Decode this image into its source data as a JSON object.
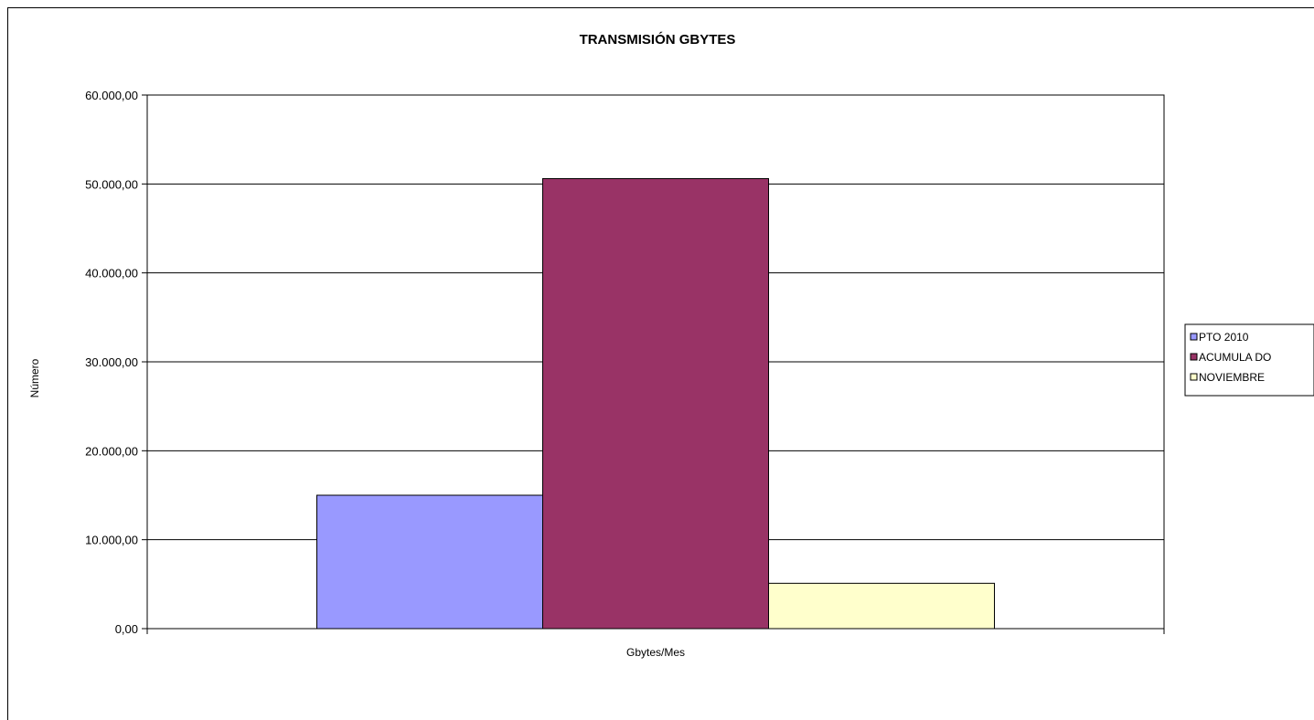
{
  "chart_data": {
    "type": "bar",
    "title": "TRANSMISIÓN GBYTES",
    "xlabel": "Gbytes/Mes",
    "ylabel": "Número",
    "categories": [
      "Gbytes/Mes"
    ],
    "series": [
      {
        "name": "PTO  2010",
        "values": [
          15000
        ],
        "color": "#9999FF"
      },
      {
        "name": "ACUMULA DO",
        "values": [
          50600
        ],
        "color": "#993366"
      },
      {
        "name": "NOVIEMBRE",
        "values": [
          5100
        ],
        "color": "#FFFFCC"
      }
    ],
    "ylim": [
      0,
      60000
    ],
    "yticks": [
      {
        "value": 0,
        "label": "0,00"
      },
      {
        "value": 10000,
        "label": "10.000,00"
      },
      {
        "value": 20000,
        "label": "20.000,00"
      },
      {
        "value": 30000,
        "label": "30.000,00"
      },
      {
        "value": 40000,
        "label": "40.000,00"
      },
      {
        "value": 50000,
        "label": "50.000,00"
      },
      {
        "value": 60000,
        "label": "60.000,00"
      }
    ],
    "grid": true,
    "legend_position": "right"
  }
}
